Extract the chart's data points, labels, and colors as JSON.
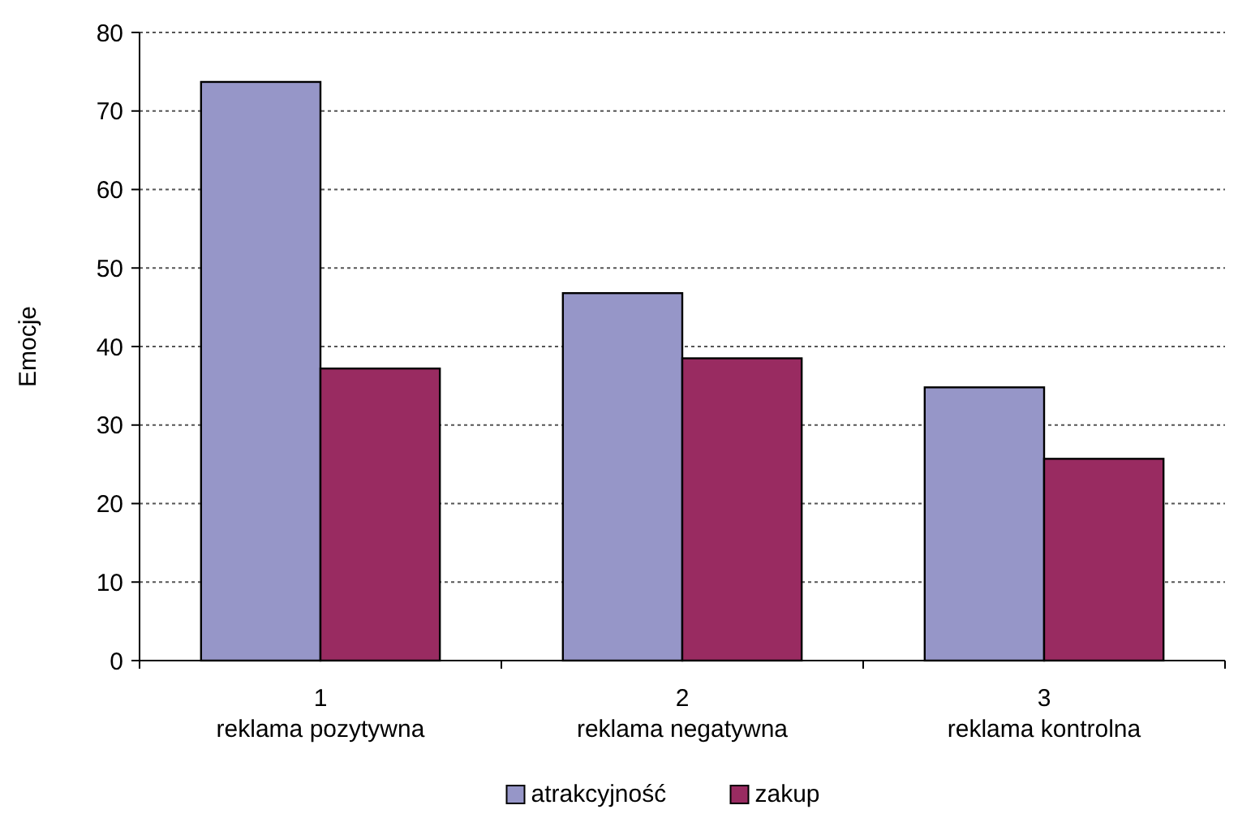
{
  "chart_data": {
    "type": "bar",
    "ylabel": "Emocje",
    "categories": [
      "1\nreklama pozytywna",
      "2\nreklama negatywna",
      "3\nreklama kontrolna"
    ],
    "series": [
      {
        "name": "atrakcyjność",
        "color": "#9696c8",
        "values": [
          73.7,
          46.8,
          34.8
        ]
      },
      {
        "name": "zakup",
        "color": "#992b61",
        "values": [
          37.2,
          38.5,
          25.7
        ]
      }
    ],
    "ylim": [
      0,
      80
    ],
    "yticks": [
      0,
      10,
      20,
      30,
      40,
      50,
      60,
      70,
      80
    ],
    "grid": "y",
    "legend": "bottom"
  }
}
